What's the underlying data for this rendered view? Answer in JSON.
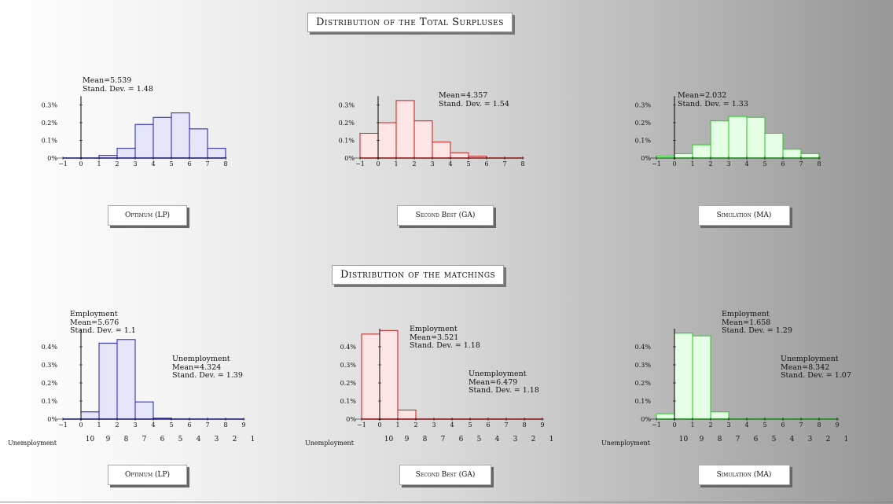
{
  "top_section": {
    "title": "Distribution of the Total Surpluses"
  },
  "bottom_section": {
    "title": "Distribution of the matchings"
  },
  "panels_top": [
    {
      "caption": "Optimum (LP)",
      "mean_text": "Mean=5.539",
      "sd_text": "Stand. Dev. = 1.48"
    },
    {
      "caption": "Second Best (GA)",
      "mean_text": "Mean=4.357",
      "sd_text": "Stand. Dev. = 1.54"
    },
    {
      "caption": "Simulation (MA)",
      "mean_text": "Mean=2.032",
      "sd_text": "Stand. Dev. = 1.33"
    }
  ],
  "panels_bottom": [
    {
      "caption": "Optimum (LP)",
      "emp_title": "Employment",
      "emp_mean": "Mean=5.676",
      "emp_sd": "Stand. Dev. = 1.1",
      "unemp_title": "Unemployment",
      "unemp_mean": "Mean=4.324",
      "unemp_sd": "Stand. Dev. = 1.39",
      "unemp_axis_label": "Unemployment"
    },
    {
      "caption": "Second Best (GA)",
      "emp_title": "Employment",
      "emp_mean": "Mean=3.521",
      "emp_sd": "Stand. Dev. = 1.18",
      "unemp_title": "Unemployment",
      "unemp_mean": "Mean=6.479",
      "unemp_sd": "Stand. Dev. = 1.18",
      "unemp_axis_label": "Unemployment"
    },
    {
      "caption": "Simulation (MA)",
      "emp_title": "Employment",
      "emp_mean": "Mean=1.658",
      "emp_sd": "Stand. Dev. = 1.29",
      "unemp_title": "Unemployment",
      "unemp_mean": "Mean=8.342",
      "unemp_sd": "Stand. Dev. = 1.07",
      "unemp_axis_label": "Unemployment"
    }
  ],
  "colors": {
    "blue_stroke": "#1f1fb4",
    "blue_fill": "#e6e6fb",
    "red_stroke": "#d01818",
    "red_fill": "#fde5e5",
    "green_stroke": "#1ecc1e",
    "green_fill": "#e6fde6"
  },
  "chart_data": [
    {
      "type": "bar",
      "title": "Optimum (LP)",
      "color": "blue",
      "bin_edges": [
        -1,
        0,
        1,
        2,
        3,
        4,
        5,
        6,
        7,
        8
      ],
      "values": [
        0.0,
        0.0,
        0.015,
        0.055,
        0.19,
        0.23,
        0.255,
        0.165,
        0.055
      ],
      "yticks": [
        "0%",
        "0.1%",
        "0.2%",
        "0.3%"
      ],
      "ylim": [
        0,
        0.35
      ],
      "xticks": [
        "−1",
        "0",
        "1",
        "2",
        "3",
        "4",
        "5",
        "6",
        "7",
        "8"
      ]
    },
    {
      "type": "bar",
      "title": "Second Best (GA)",
      "color": "red",
      "bin_edges": [
        -1,
        0,
        1,
        2,
        3,
        4,
        5,
        6,
        7,
        8
      ],
      "values": [
        0.14,
        0.2,
        0.325,
        0.21,
        0.09,
        0.03,
        0.01,
        0.0,
        0.0
      ],
      "yticks": [
        "0%",
        "0.1%",
        "0.2%",
        "0.3%"
      ],
      "ylim": [
        0,
        0.35
      ],
      "xticks": [
        "−1",
        "0",
        "1",
        "2",
        "3",
        "4",
        "5",
        "6",
        "7",
        "8"
      ]
    },
    {
      "type": "bar",
      "title": "Simulation (MA)",
      "color": "green",
      "bin_edges": [
        -1,
        0,
        1,
        2,
        3,
        4,
        5,
        6,
        7,
        8
      ],
      "values": [
        0.01,
        0.025,
        0.075,
        0.21,
        0.235,
        0.23,
        0.14,
        0.05,
        0.025
      ],
      "yticks": [
        "0%",
        "0.1%",
        "0.2%",
        "0.3%"
      ],
      "ylim": [
        0,
        0.35
      ],
      "xticks": [
        "−1",
        "0",
        "1",
        "2",
        "3",
        "4",
        "5",
        "6",
        "7",
        "8"
      ]
    },
    {
      "type": "bar",
      "title": "Optimum (LP)",
      "color": "blue",
      "bin_edges": [
        -1,
        0,
        1,
        2,
        3,
        4,
        5,
        6,
        7,
        8,
        9
      ],
      "values": [
        0.0,
        0.04,
        0.42,
        0.44,
        0.095,
        0.005,
        0.0,
        0.0,
        0.0,
        0.0
      ],
      "yticks": [
        "0%",
        "0.1%",
        "0.2%",
        "0.3%",
        "0.4%"
      ],
      "ylim": [
        0,
        0.5
      ],
      "xticks": [
        "−1",
        "0",
        "1",
        "2",
        "3",
        "4",
        "5",
        "6",
        "7",
        "8",
        "9"
      ],
      "secondary_xticks": [
        "10",
        "9",
        "8",
        "7",
        "6",
        "5",
        "4",
        "3",
        "2",
        "1"
      ]
    },
    {
      "type": "bar",
      "title": "Second Best (GA)",
      "color": "red",
      "bin_edges": [
        -1,
        0,
        1,
        2,
        3,
        4,
        5,
        6,
        7,
        8,
        9
      ],
      "values": [
        0.47,
        0.49,
        0.05,
        0.0,
        0.0,
        0.0,
        0.0,
        0.0,
        0.0,
        0.0
      ],
      "yticks": [
        "0%",
        "0.1%",
        "0.2%",
        "0.3%",
        "0.4%"
      ],
      "ylim": [
        0,
        0.5
      ],
      "xticks": [
        "−1",
        "0",
        "1",
        "2",
        "3",
        "4",
        "5",
        "6",
        "7",
        "8",
        "9"
      ],
      "secondary_xticks": [
        "10",
        "9",
        "8",
        "7",
        "6",
        "5",
        "4",
        "3",
        "2",
        "1"
      ]
    },
    {
      "type": "bar",
      "title": "Simulation (MA)",
      "color": "green",
      "bin_edges": [
        -1,
        0,
        1,
        2,
        3,
        4,
        5,
        6,
        7,
        8,
        9
      ],
      "values": [
        0.03,
        0.475,
        0.46,
        0.04,
        0.0,
        0.0,
        0.0,
        0.0,
        0.0,
        0.0
      ],
      "yticks": [
        "0%",
        "0.1%",
        "0.2%",
        "0.3%",
        "0.4%"
      ],
      "ylim": [
        0,
        0.5
      ],
      "xticks": [
        "−1",
        "0",
        "1",
        "2",
        "3",
        "4",
        "5",
        "6",
        "7",
        "8",
        "9"
      ],
      "secondary_xticks": [
        "10",
        "9",
        "8",
        "7",
        "6",
        "5",
        "4",
        "3",
        "2",
        "1"
      ]
    }
  ]
}
